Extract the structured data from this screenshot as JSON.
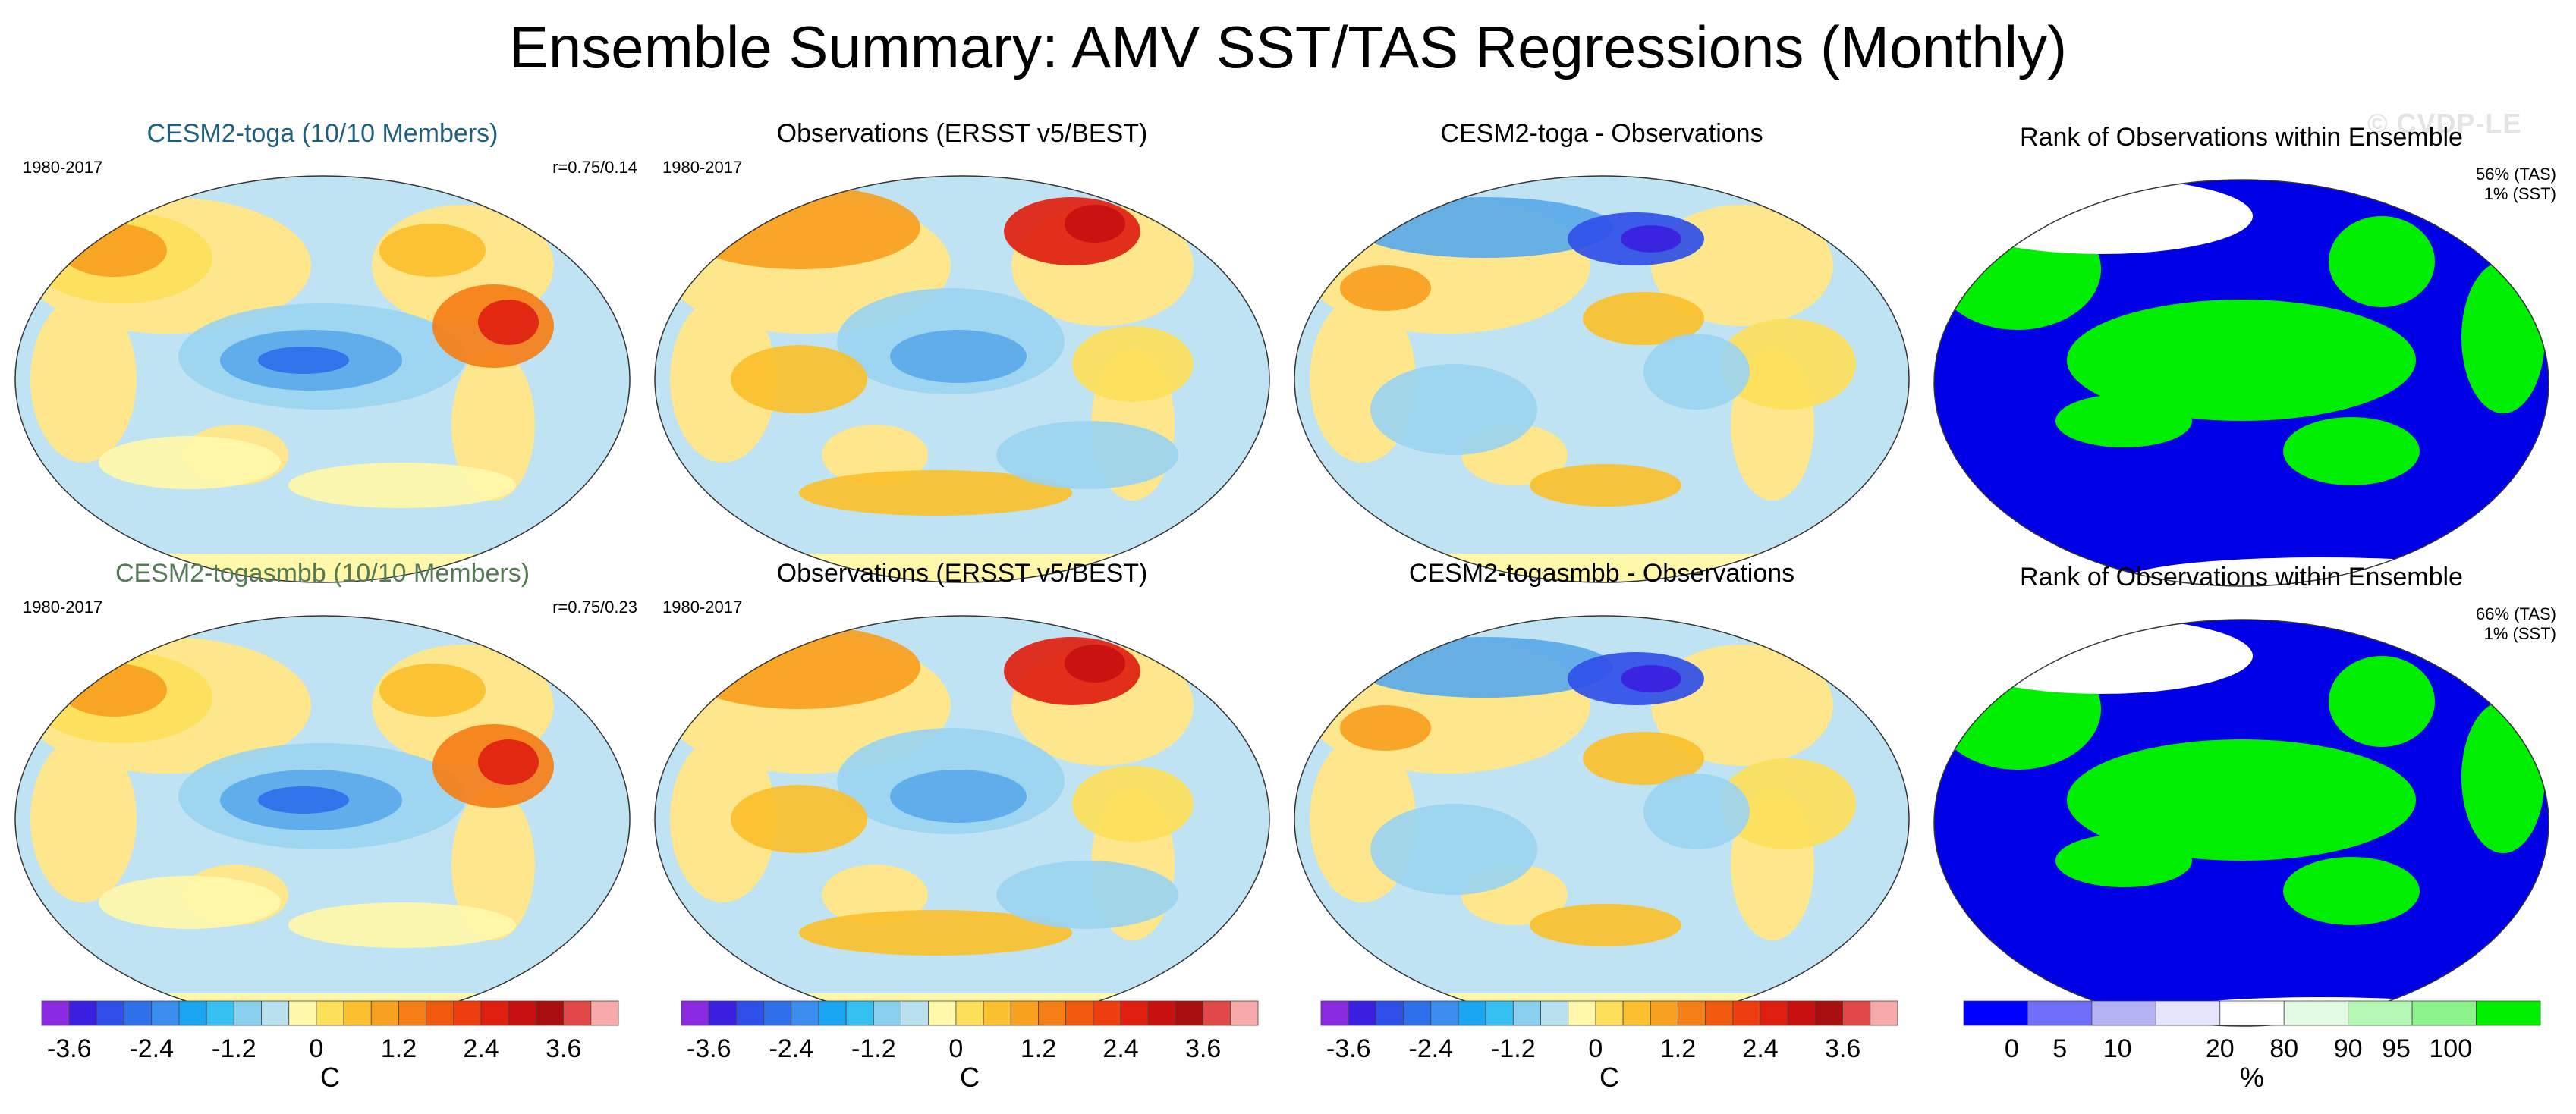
{
  "figure": {
    "title": "Ensemble Summary: AMV SST/TAS Regressions (Monthly)",
    "watermark": "© CVDP-LE"
  },
  "row1": {
    "model": {
      "title": "CESM2-toga (10/10 Members)",
      "period": "1980-2017",
      "stat": "r=0.75/0.14"
    },
    "obs": {
      "title": "Observations (ERSST v5/BEST)",
      "period": "1980-2017"
    },
    "diff": {
      "title": "CESM2-toga - Observations"
    },
    "rank": {
      "title": "Rank of Observations within Ensemble",
      "tas": "56% (TAS)",
      "sst": "1% (SST)"
    }
  },
  "row2": {
    "model": {
      "title": "CESM2-togasmbb (10/10 Members)",
      "period": "1980-2017",
      "stat": "r=0.75/0.23"
    },
    "obs": {
      "title": "Observations (ERSST v5/BEST)",
      "period": "1980-2017"
    },
    "diff": {
      "title": "CESM2-togasmbb - Observations"
    },
    "rank": {
      "title": "Rank of Observations within Ensemble",
      "tas": "66% (TAS)",
      "sst": "1% (SST)"
    }
  },
  "colorbar_temp": {
    "unit": "C",
    "ticks": [
      "-3.6",
      "-2.4",
      "-1.2",
      "0",
      "1.2",
      "2.4",
      "3.6"
    ],
    "colors": [
      "#8a2be2",
      "#3b1fe0",
      "#2f50e8",
      "#2f6fe9",
      "#3b8ef0",
      "#1aa6f0",
      "#36c0f2",
      "#88d0ee",
      "#b8e0ef",
      "#fff7aa",
      "#fde05a",
      "#fbc02d",
      "#f8a020",
      "#f57f17",
      "#f25a10",
      "#ee3d0f",
      "#e01f10",
      "#c81010",
      "#a80e0e",
      "#e24848",
      "#f7aaaa"
    ]
  },
  "colorbar_rank": {
    "unit": "%",
    "ticks": [
      "0",
      "5",
      "10",
      "20",
      "80",
      "90",
      "95",
      "100"
    ],
    "colors": [
      "#0000ff",
      "#6e6ef8",
      "#b3b3f4",
      "#e4e4fb",
      "#ffffff",
      "#e2fbe2",
      "#b3f7b3",
      "#8cf28c",
      "#00ee00"
    ]
  },
  "colors": {
    "ocean_base": "#bfe3f2",
    "land_base": "#fde68c",
    "rank_blue": "#0000e6",
    "rank_green": "#00ee00"
  }
}
